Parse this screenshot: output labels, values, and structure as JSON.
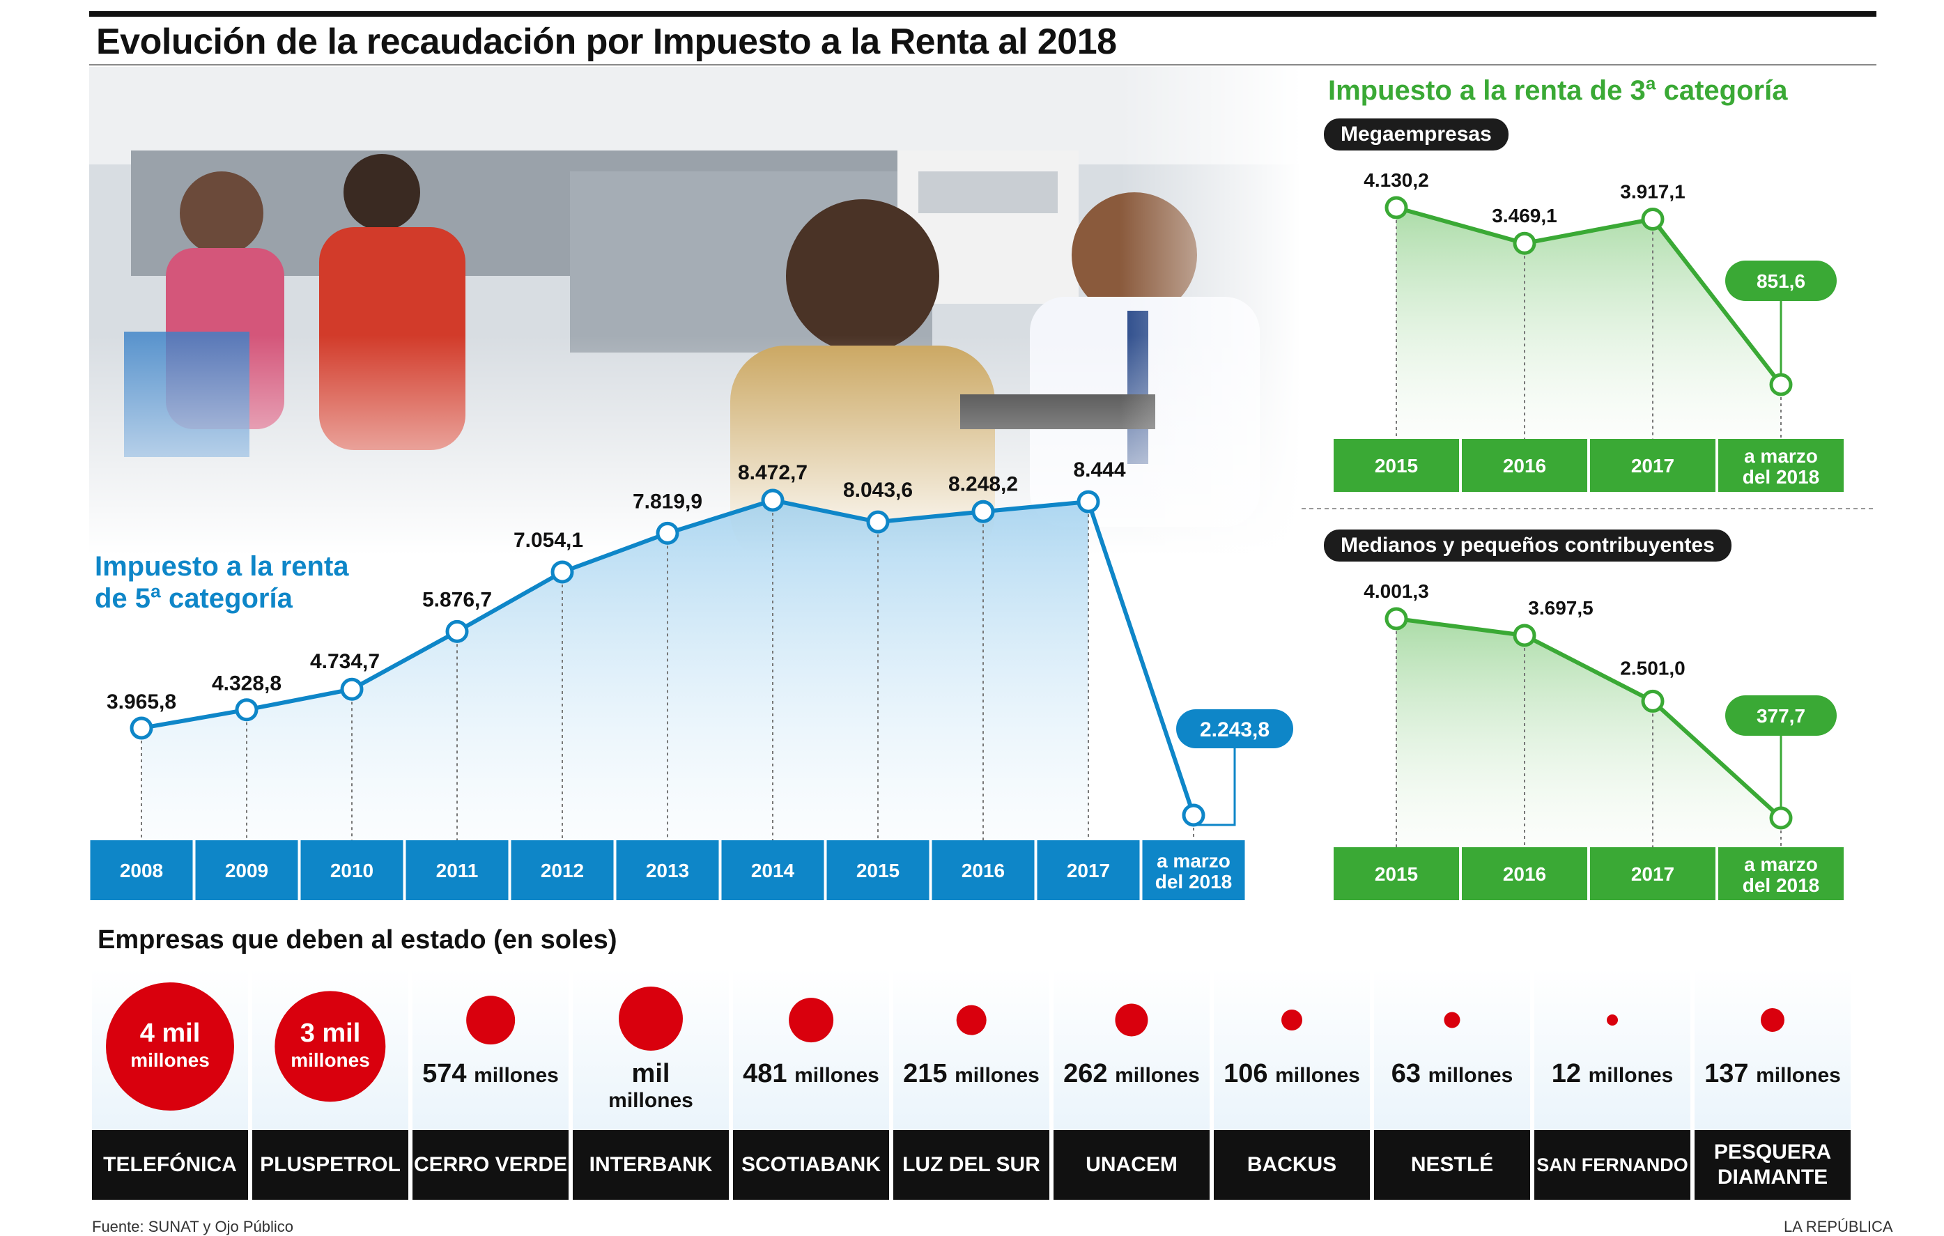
{
  "title": "Evolución de la recaudación por Impuesto a la Renta al 2018",
  "colors": {
    "blue": "#0e86c8",
    "green": "#3aa935",
    "red": "#d9000d",
    "dark": "#1c1c1c"
  },
  "chart_data": [
    {
      "type": "line",
      "title": "Impuesto a la renta de 5ª categoría",
      "categories": [
        "2008",
        "2009",
        "2010",
        "2011",
        "2012",
        "2013",
        "2014",
        "2015",
        "2016",
        "2017",
        "a marzo del 2018"
      ],
      "values": [
        3965.8,
        4328.8,
        4734.7,
        5876.7,
        7054.1,
        7819.9,
        8472.7,
        8043.6,
        8248.2,
        8444,
        2243.8
      ],
      "labels": [
        "3.965,8",
        "4.328,8",
        "4.734,7",
        "5.876,7",
        "7.054,1",
        "7.819,9",
        "8.472,7",
        "8.043,6",
        "8.248,2",
        "8.444",
        "2.243,8"
      ],
      "color": "#0e86c8"
    },
    {
      "type": "line",
      "title": "Megaempresas",
      "categories": [
        "2015",
        "2016",
        "2017",
        "a marzo del 2018"
      ],
      "values": [
        4130.2,
        3469.1,
        3917.1,
        851.6
      ],
      "labels": [
        "4.130,2",
        "3.469,1",
        "3.917,1",
        "851,6"
      ],
      "color": "#3aa935"
    },
    {
      "type": "line",
      "title": "Medianos y pequeños contribuyentes",
      "categories": [
        "2015",
        "2016",
        "2017",
        "a marzo del 2018"
      ],
      "values": [
        4001.3,
        3697.5,
        2501.0,
        377.7
      ],
      "labels": [
        "4.001,3",
        "3.697,5",
        "2.501,0",
        "377,7"
      ],
      "color": "#3aa935"
    }
  ],
  "third_category_title": "Impuesto a la renta de 3ª categoría",
  "companies": {
    "title": "Empresas que deben al estado (en soles)",
    "items": [
      {
        "name": "TELEFÓNICA",
        "amount_num": "4 mil",
        "amount_unit": "millones",
        "value_millions": 4000,
        "inside": true
      },
      {
        "name": "PLUSPETROL",
        "amount_num": "3 mil",
        "amount_unit": "millones",
        "value_millions": 3000,
        "inside": true
      },
      {
        "name": "CERRO VERDE",
        "amount_num": "574",
        "amount_unit": "millones",
        "value_millions": 574,
        "inside": false
      },
      {
        "name": "INTERBANK",
        "amount_num": "mil",
        "amount_unit": "millones",
        "value_millions": 1000,
        "inside": false,
        "stacked": true
      },
      {
        "name": "SCOTIABANK",
        "amount_num": "481",
        "amount_unit": "millones",
        "value_millions": 481,
        "inside": false
      },
      {
        "name": "LUZ DEL SUR",
        "amount_num": "215",
        "amount_unit": "millones",
        "value_millions": 215,
        "inside": false
      },
      {
        "name": "UNACEM",
        "amount_num": "262",
        "amount_unit": "millones",
        "value_millions": 262,
        "inside": false
      },
      {
        "name": "BACKUS",
        "amount_num": "106",
        "amount_unit": "millones",
        "value_millions": 106,
        "inside": false
      },
      {
        "name": "NESTLÉ",
        "amount_num": "63",
        "amount_unit": "millones",
        "value_millions": 63,
        "inside": false
      },
      {
        "name": "SAN FERNANDO",
        "amount_num": "12",
        "amount_unit": "millones",
        "value_millions": 12,
        "inside": false
      },
      {
        "name": "PESQUERA\nDIAMANTE",
        "amount_num": "137",
        "amount_unit": "millones",
        "value_millions": 137,
        "inside": false
      }
    ]
  },
  "footer": {
    "source": "Fuente: SUNAT y Ojo Público",
    "credit": "LA REPÚBLICA"
  }
}
